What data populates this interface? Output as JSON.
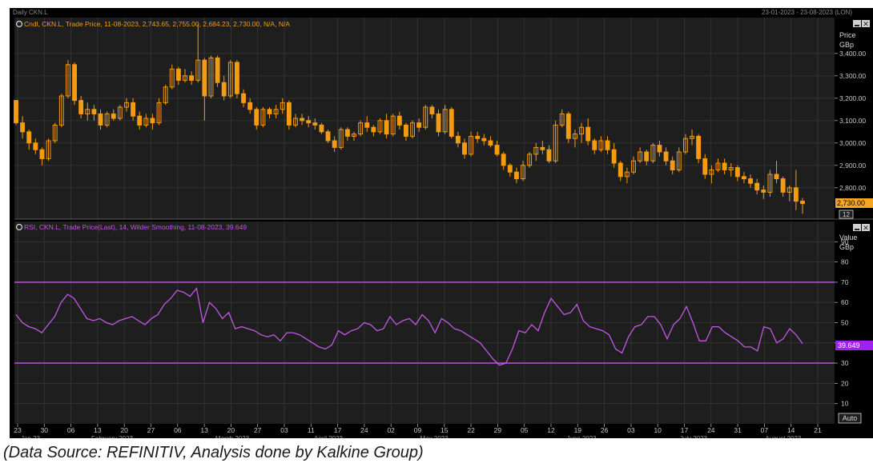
{
  "header": {
    "title_left": "Daily CKN.L",
    "date_range": "23-01-2023 - 23-08-2023 (LON)"
  },
  "price_panel": {
    "legend": "Cndl, CKN.L, Trade Price, 11-08-2023, 2,743.65, 2,755.00, 2,684.23, 2,730.00, N/A, N/A",
    "axis_title_1": "Price",
    "axis_title_2": "GBp",
    "last_value_label": "2,730.00",
    "small_badge": "12"
  },
  "rsi_panel": {
    "legend": "RSI, CKN.L, Trade Price(Last), 14, Wilder Smoothing, 11-08-2023, 39.649",
    "axis_title_1": "Value",
    "axis_title_2": "GBp",
    "last_value_label": "39.649"
  },
  "x_axis": {
    "auto_button": "Auto"
  },
  "caption": "(Data Source: REFINITIV, Analysis done by Kalkine Group)",
  "colors": {
    "background": "#000000",
    "panel": "#1e1e1e",
    "grid": "#363636",
    "candle": "#f39c12",
    "rsi": "#c158e6",
    "rsi_badge": "#a020f0",
    "price_badge": "#f5a623",
    "axis_text": "#c8c8c8"
  },
  "chart_data": [
    {
      "type": "candlestick",
      "title": "Cndl, CKN.L, Trade Price",
      "ylabel": "Price GBp",
      "ylim": [
        2660,
        3560
      ],
      "y_ticks": [
        "2,800.00",
        "2,900.00",
        "3,000.00",
        "3,100.00",
        "3,200.00",
        "3,300.00",
        "3,400.00"
      ],
      "x_ticks": [
        "23",
        "30",
        "06",
        "13",
        "20",
        "27",
        "06",
        "13",
        "20",
        "27",
        "03",
        "11",
        "17",
        "24",
        "02",
        "09",
        "15",
        "22",
        "29",
        "05",
        "12",
        "19",
        "26",
        "03",
        "10",
        "17",
        "24",
        "31",
        "07",
        "14",
        "21"
      ],
      "month_labels": [
        "Jan 23",
        "February 2023",
        "March 2023",
        "April 2023",
        "May 2023",
        "June 2023",
        "July 2023",
        "August 2023"
      ],
      "series": [
        {
          "name": "CKN.L",
          "values": [
            [
              3190,
              3190,
              3080,
              3090
            ],
            [
              3090,
              3120,
              3020,
              3050
            ],
            [
              3050,
              3060,
              2970,
              3000
            ],
            [
              3000,
              3020,
              2950,
              2970
            ],
            [
              2970,
              2980,
              2900,
              2930
            ],
            [
              2930,
              3020,
              2920,
              3010
            ],
            [
              3010,
              3090,
              3000,
              3080
            ],
            [
              3080,
              3220,
              3070,
              3210
            ],
            [
              3210,
              3370,
              3200,
              3350
            ],
            [
              3350,
              3360,
              3170,
              3190
            ],
            [
              3190,
              3210,
              3110,
              3130
            ],
            [
              3130,
              3180,
              3100,
              3150
            ],
            [
              3150,
              3170,
              3100,
              3130
            ],
            [
              3130,
              3150,
              3060,
              3080
            ],
            [
              3080,
              3140,
              3070,
              3130
            ],
            [
              3130,
              3150,
              3100,
              3110
            ],
            [
              3110,
              3170,
              3100,
              3160
            ],
            [
              3160,
              3200,
              3140,
              3180
            ],
            [
              3180,
              3200,
              3100,
              3120
            ],
            [
              3120,
              3140,
              3060,
              3080
            ],
            [
              3080,
              3130,
              3070,
              3110
            ],
            [
              3110,
              3130,
              3060,
              3090
            ],
            [
              3090,
              3200,
              3080,
              3180
            ],
            [
              3180,
              3260,
              3170,
              3250
            ],
            [
              3250,
              3350,
              3240,
              3330
            ],
            [
              3330,
              3340,
              3260,
              3280
            ],
            [
              3280,
              3330,
              3270,
              3300
            ],
            [
              3300,
              3320,
              3260,
              3280
            ],
            [
              3280,
              3530,
              3270,
              3370
            ],
            [
              3370,
              3380,
              3100,
              3210
            ],
            [
              3210,
              3390,
              3200,
              3380
            ],
            [
              3380,
              3390,
              3250,
              3270
            ],
            [
              3270,
              3300,
              3190,
              3210
            ],
            [
              3210,
              3370,
              3200,
              3360
            ],
            [
              3360,
              3370,
              3200,
              3220
            ],
            [
              3220,
              3240,
              3160,
              3180
            ],
            [
              3180,
              3200,
              3130,
              3150
            ],
            [
              3150,
              3160,
              3060,
              3080
            ],
            [
              3080,
              3160,
              3070,
              3150
            ],
            [
              3150,
              3160,
              3110,
              3130
            ],
            [
              3130,
              3170,
              3110,
              3150
            ],
            [
              3150,
              3200,
              3130,
              3180
            ],
            [
              3180,
              3190,
              3060,
              3080
            ],
            [
              3080,
              3130,
              3070,
              3110
            ],
            [
              3110,
              3130,
              3080,
              3100
            ],
            [
              3100,
              3120,
              3070,
              3090
            ],
            [
              3090,
              3110,
              3060,
              3080
            ],
            [
              3080,
              3090,
              3040,
              3050
            ],
            [
              3050,
              3060,
              3000,
              3010
            ],
            [
              3010,
              3030,
              2960,
              2980
            ],
            [
              2980,
              3070,
              2970,
              3060
            ],
            [
              3060,
              3070,
              3010,
              3030
            ],
            [
              3030,
              3050,
              3010,
              3040
            ],
            [
              3040,
              3100,
              3030,
              3090
            ],
            [
              3090,
              3120,
              3050,
              3070
            ],
            [
              3070,
              3080,
              3030,
              3050
            ],
            [
              3050,
              3110,
              3040,
              3100
            ],
            [
              3100,
              3130,
              3020,
              3040
            ],
            [
              3040,
              3130,
              3030,
              3120
            ],
            [
              3120,
              3140,
              3060,
              3080
            ],
            [
              3080,
              3090,
              3010,
              3030
            ],
            [
              3030,
              3100,
              3020,
              3090
            ],
            [
              3090,
              3110,
              3050,
              3070
            ],
            [
              3070,
              3170,
              3060,
              3160
            ],
            [
              3160,
              3170,
              3110,
              3130
            ],
            [
              3130,
              3150,
              3030,
              3050
            ],
            [
              3050,
              3170,
              3040,
              3150
            ],
            [
              3150,
              3160,
              3020,
              3030
            ],
            [
              3030,
              3050,
              2980,
              3000
            ],
            [
              3000,
              3020,
              2930,
              2950
            ],
            [
              2950,
              3050,
              2940,
              3030
            ],
            [
              3030,
              3050,
              3000,
              3020
            ],
            [
              3020,
              3040,
              2990,
              3010
            ],
            [
              3010,
              3030,
              2980,
              2990
            ],
            [
              2990,
              3010,
              2940,
              2950
            ],
            [
              2950,
              2960,
              2880,
              2900
            ],
            [
              2900,
              2910,
              2850,
              2870
            ],
            [
              2870,
              2890,
              2820,
              2840
            ],
            [
              2840,
              2920,
              2830,
              2900
            ],
            [
              2900,
              2960,
              2890,
              2950
            ],
            [
              2950,
              3000,
              2920,
              2980
            ],
            [
              2980,
              3010,
              2950,
              2970
            ],
            [
              2970,
              2990,
              2910,
              2920
            ],
            [
              2920,
              3100,
              2910,
              3080
            ],
            [
              3080,
              3150,
              3070,
              3130
            ],
            [
              3130,
              3140,
              3000,
              3020
            ],
            [
              3020,
              3060,
              2980,
              3040
            ],
            [
              3040,
              3090,
              3000,
              3070
            ],
            [
              3070,
              3110,
              2990,
              3010
            ],
            [
              3010,
              3020,
              2950,
              2970
            ],
            [
              2970,
              3030,
              2960,
              3010
            ],
            [
              3010,
              3030,
              2950,
              2970
            ],
            [
              2970,
              3000,
              2890,
              2910
            ],
            [
              2910,
              2920,
              2830,
              2850
            ],
            [
              2850,
              2890,
              2820,
              2870
            ],
            [
              2870,
              2940,
              2860,
              2920
            ],
            [
              2920,
              2980,
              2910,
              2960
            ],
            [
              2960,
              2970,
              2900,
              2920
            ],
            [
              2920,
              3000,
              2910,
              2990
            ],
            [
              2990,
              3010,
              2940,
              2960
            ],
            [
              2960,
              2980,
              2900,
              2920
            ],
            [
              2920,
              2940,
              2860,
              2880
            ],
            [
              2880,
              2980,
              2870,
              2960
            ],
            [
              2960,
              3040,
              2950,
              3020
            ],
            [
              3020,
              3060,
              2990,
              3030
            ],
            [
              3030,
              3040,
              2910,
              2930
            ],
            [
              2930,
              2950,
              2840,
              2860
            ],
            [
              2860,
              2900,
              2820,
              2880
            ],
            [
              2880,
              2930,
              2870,
              2910
            ],
            [
              2910,
              2930,
              2860,
              2880
            ],
            [
              2880,
              2910,
              2850,
              2890
            ],
            [
              2890,
              2900,
              2830,
              2850
            ],
            [
              2850,
              2870,
              2820,
              2840
            ],
            [
              2840,
              2860,
              2800,
              2820
            ],
            [
              2820,
              2840,
              2770,
              2790
            ],
            [
              2790,
              2810,
              2750,
              2780
            ],
            [
              2780,
              2880,
              2760,
              2860
            ],
            [
              2860,
              2920,
              2820,
              2840
            ],
            [
              2840,
              2850,
              2760,
              2780
            ],
            [
              2780,
              2810,
              2740,
              2800
            ],
            [
              2800,
              2880,
              2700,
              2740
            ],
            [
              2740,
              2755,
              2684,
              2730
            ]
          ]
        }
      ]
    },
    {
      "type": "line",
      "title": "RSI, CKN.L, Trade Price(Last), 14, Wilder Smoothing",
      "ylabel": "Value GBp",
      "ylim": [
        0,
        100
      ],
      "y_ticks": [
        "10",
        "20",
        "30",
        "40",
        "50",
        "60",
        "70",
        "80",
        "90"
      ],
      "reference_lines": [
        70,
        30
      ],
      "series": [
        {
          "name": "RSI",
          "values": [
            54,
            50,
            48,
            47,
            45,
            49,
            53,
            60,
            64,
            62,
            57,
            52,
            51,
            52,
            50,
            49,
            51,
            52,
            53,
            51,
            49,
            52,
            54,
            59,
            62,
            66,
            65,
            63,
            67,
            50,
            60,
            57,
            52,
            55,
            47,
            48,
            47,
            46,
            44,
            43,
            44,
            41,
            45,
            45,
            44,
            42,
            40,
            38,
            37,
            39,
            46,
            44,
            46,
            47,
            50,
            49,
            46,
            47,
            53,
            49,
            51,
            52,
            49,
            54,
            51,
            45,
            52,
            50,
            47,
            46,
            44,
            42,
            40,
            36,
            32,
            29,
            30,
            37,
            46,
            45,
            49,
            46,
            55,
            62,
            58,
            54,
            55,
            59,
            51,
            48,
            47,
            46,
            44,
            37,
            35,
            43,
            48,
            49,
            53,
            53,
            49,
            42,
            49,
            52,
            58,
            50,
            41,
            41,
            48,
            48,
            45,
            43,
            41,
            38,
            38,
            36,
            48,
            47,
            40,
            42,
            47,
            44,
            39.649
          ]
        }
      ]
    }
  ]
}
